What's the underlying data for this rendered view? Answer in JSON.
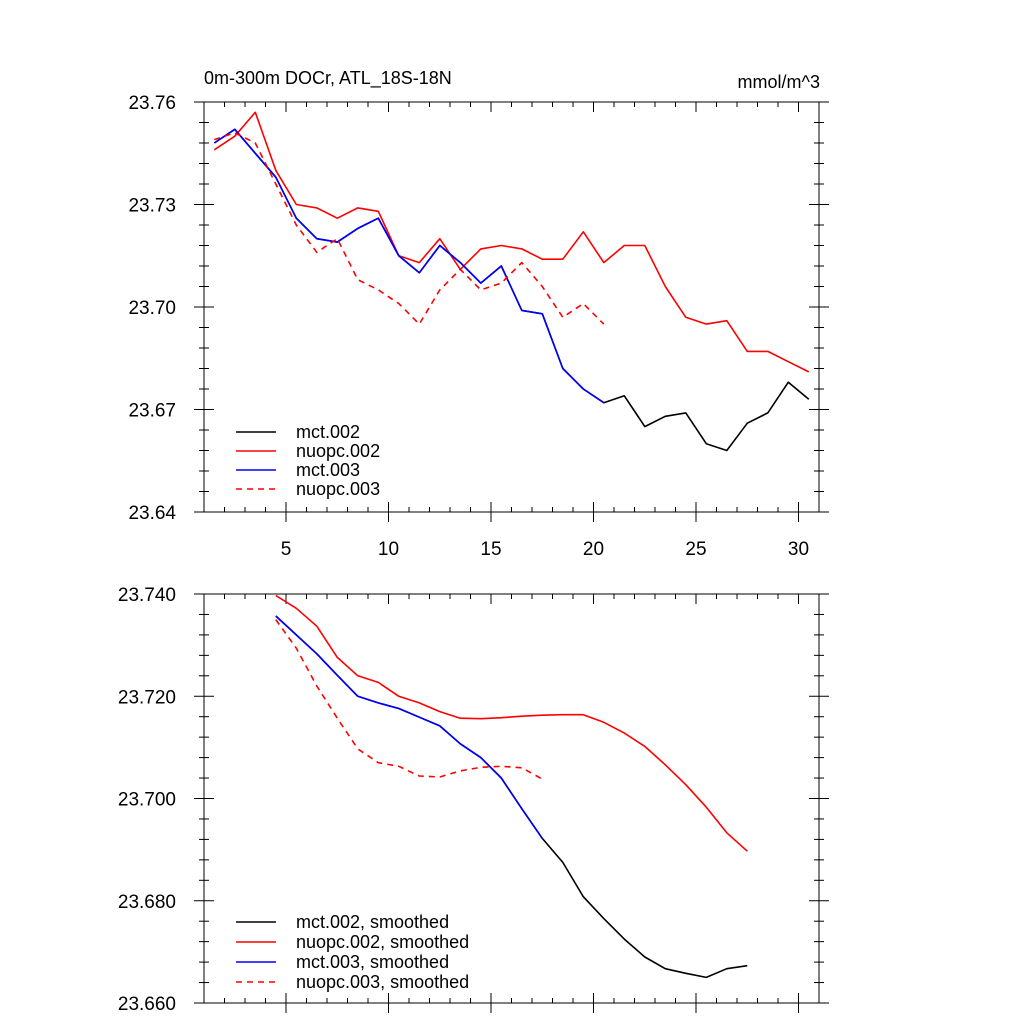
{
  "figure": {
    "title_left": "0m-300m DOCr, ATL_18S-18N",
    "title_right": "mmol/m^3"
  },
  "colors": {
    "black": "#000000",
    "red": "#ff0000",
    "blue": "#0000ff"
  },
  "chart_data": [
    {
      "type": "line",
      "title": "0m-300m DOCr, ATL_18S-18N",
      "units": "mmol/m^3",
      "xlim": [
        1,
        31
      ],
      "ylim": [
        23.64,
        23.76
      ],
      "xticks": [
        5,
        10,
        15,
        20,
        25,
        30
      ],
      "xtick_labels": [
        "5",
        "10",
        "15",
        "20",
        "25",
        "30"
      ],
      "yticks": [
        23.64,
        23.67,
        23.7,
        23.73,
        23.76
      ],
      "ytick_labels": [
        "23.64",
        "23.67",
        "23.70",
        "23.73",
        "23.76"
      ],
      "legend_position": "bottom-left",
      "series": [
        {
          "name": "mct.002",
          "color": "#000000",
          "dash": "solid",
          "x": [
            1.5,
            2.5,
            3.5,
            4.5,
            5.5,
            6.5,
            7.5,
            8.5,
            9.5,
            10.5,
            11.5,
            12.5,
            13.5,
            14.5,
            15.5,
            16.5,
            17.5,
            18.5,
            19.5,
            20.5,
            21.5,
            22.5,
            23.5,
            24.5,
            25.5,
            26.5,
            27.5,
            28.5,
            29.5,
            30.5
          ],
          "values": [
            23.748,
            23.752,
            23.745,
            23.738,
            23.726,
            23.72,
            23.719,
            23.723,
            23.726,
            23.715,
            23.71,
            23.718,
            23.713,
            23.707,
            23.712,
            23.699,
            23.698,
            23.682,
            23.676,
            23.672,
            23.674,
            23.665,
            23.668,
            23.669,
            23.66,
            23.658,
            23.666,
            23.669,
            23.678,
            23.673
          ]
        },
        {
          "name": "nuopc.002",
          "color": "#ff0000",
          "dash": "solid",
          "x": [
            1.5,
            2.5,
            3.5,
            4.5,
            5.5,
            6.5,
            7.5,
            8.5,
            9.5,
            10.5,
            11.5,
            12.5,
            13.5,
            14.5,
            15.5,
            16.5,
            17.5,
            18.5,
            19.5,
            20.5,
            21.5,
            22.5,
            23.5,
            24.5,
            25.5,
            26.5,
            27.5,
            28.5,
            29.5,
            30.5
          ],
          "values": [
            23.746,
            23.75,
            23.757,
            23.74,
            23.73,
            23.729,
            23.726,
            23.729,
            23.728,
            23.715,
            23.713,
            23.72,
            23.711,
            23.717,
            23.718,
            23.717,
            23.714,
            23.714,
            23.722,
            23.713,
            23.718,
            23.718,
            23.706,
            23.697,
            23.695,
            23.696,
            23.687,
            23.687,
            23.684,
            23.681
          ]
        },
        {
          "name": "mct.003",
          "color": "#0000ff",
          "dash": "solid",
          "x": [
            1.5,
            2.5,
            3.5,
            4.5,
            5.5,
            6.5,
            7.5,
            8.5,
            9.5,
            10.5,
            11.5,
            12.5,
            13.5,
            14.5,
            15.5,
            16.5,
            17.5,
            18.5,
            19.5,
            20.5
          ],
          "values": [
            23.748,
            23.752,
            23.745,
            23.738,
            23.726,
            23.72,
            23.719,
            23.723,
            23.726,
            23.715,
            23.71,
            23.718,
            23.713,
            23.707,
            23.712,
            23.699,
            23.698,
            23.682,
            23.676,
            23.672
          ]
        },
        {
          "name": "nuopc.003",
          "color": "#ff0000",
          "dash": "dashed",
          "x": [
            1.5,
            2.5,
            3.5,
            4.5,
            5.5,
            6.5,
            7.5,
            8.5,
            9.5,
            10.5,
            11.5,
            12.5,
            13.5,
            14.5,
            15.5,
            16.5,
            17.5,
            18.5,
            19.5,
            20.5
          ],
          "values": [
            23.749,
            23.751,
            23.748,
            23.736,
            23.724,
            23.716,
            23.72,
            23.708,
            23.705,
            23.701,
            23.695,
            23.705,
            23.711,
            23.705,
            23.707,
            23.713,
            23.706,
            23.697,
            23.701,
            23.695
          ]
        }
      ]
    },
    {
      "type": "line",
      "title": "",
      "xlim": [
        1,
        31
      ],
      "ylim": [
        23.66,
        23.74
      ],
      "xticks": [
        5,
        10,
        15,
        20,
        25,
        30
      ],
      "yticks": [
        23.66,
        23.68,
        23.7,
        23.72,
        23.74
      ],
      "ytick_labels": [
        "23.660",
        "23.680",
        "23.700",
        "23.720",
        "23.740"
      ],
      "legend_position": "bottom-left",
      "series": [
        {
          "name": "mct.002, smoothed",
          "color": "#000000",
          "dash": "solid",
          "x": [
            4.5,
            5.5,
            6.5,
            7.5,
            8.5,
            9.5,
            10.5,
            11.5,
            12.5,
            13.5,
            14.5,
            15.5,
            16.5,
            17.5,
            18.5,
            19.5,
            20.5,
            21.5,
            22.5,
            23.5,
            24.5,
            25.5,
            26.5,
            27.5
          ],
          "values": [
            23.7357,
            23.732,
            23.7283,
            23.7241,
            23.72,
            23.7187,
            23.7176,
            23.7159,
            23.7142,
            23.7107,
            23.708,
            23.704,
            23.698,
            23.6922,
            23.6875,
            23.6808,
            23.6765,
            23.6725,
            23.669,
            23.6667,
            23.6658,
            23.665,
            23.6667,
            23.6673
          ]
        },
        {
          "name": "nuopc.002, smoothed",
          "color": "#ff0000",
          "dash": "solid",
          "x": [
            4.5,
            5.5,
            6.5,
            7.5,
            8.5,
            9.5,
            10.5,
            11.5,
            12.5,
            13.5,
            14.5,
            15.5,
            16.5,
            17.5,
            18.5,
            19.5,
            20.5,
            21.5,
            22.5,
            23.5,
            24.5,
            25.5,
            26.5,
            27.5
          ],
          "values": [
            23.7397,
            23.7372,
            23.7337,
            23.7276,
            23.724,
            23.7227,
            23.72,
            23.7187,
            23.717,
            23.7157,
            23.7156,
            23.7158,
            23.7161,
            23.7163,
            23.7164,
            23.7164,
            23.7149,
            23.7128,
            23.7102,
            23.7066,
            23.7027,
            23.6983,
            23.6933,
            23.6897
          ]
        },
        {
          "name": "mct.003, smoothed",
          "color": "#0000ff",
          "dash": "solid",
          "x": [
            4.5,
            5.5,
            6.5,
            7.5,
            8.5,
            9.5,
            10.5,
            11.5,
            12.5,
            13.5,
            14.5,
            15.5,
            16.5,
            17.5
          ],
          "values": [
            23.7357,
            23.732,
            23.7283,
            23.7241,
            23.72,
            23.7187,
            23.7176,
            23.7159,
            23.7142,
            23.7107,
            23.708,
            23.704,
            23.698,
            23.6922
          ]
        },
        {
          "name": "nuopc.003, smoothed",
          "color": "#ff0000",
          "dash": "dashed",
          "x": [
            4.5,
            5.5,
            6.5,
            7.5,
            8.5,
            9.5,
            10.5,
            11.5,
            12.5,
            13.5,
            14.5,
            15.5,
            16.5,
            17.5
          ],
          "values": [
            23.735,
            23.7294,
            23.722,
            23.7157,
            23.7097,
            23.707,
            23.7063,
            23.7044,
            23.7042,
            23.7054,
            23.7061,
            23.7063,
            23.706,
            23.7038
          ]
        }
      ]
    }
  ]
}
